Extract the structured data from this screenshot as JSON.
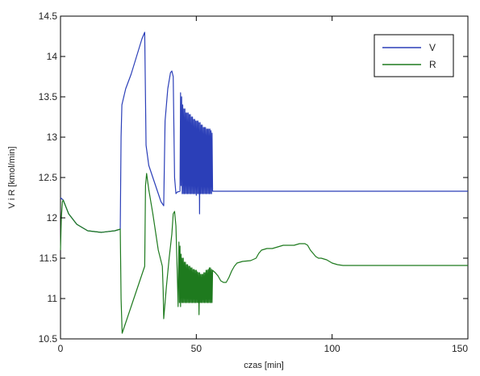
{
  "chart_data": {
    "type": "line",
    "xlabel": "czas [min]",
    "ylabel": "V i R [kmol/min]",
    "xlim": [
      0,
      150
    ],
    "ylim": [
      10.5,
      14.5
    ],
    "xticks": [
      0,
      50,
      100,
      150
    ],
    "yticks": [
      10.5,
      11,
      11.5,
      12,
      12.5,
      13,
      13.5,
      14,
      14.5
    ],
    "xtick_labels": [
      "0",
      "50",
      "100",
      "150"
    ],
    "ytick_labels": [
      "10.5",
      "11",
      "11.5",
      "12",
      "12.5",
      "13",
      "13.5",
      "14",
      "14.5"
    ],
    "grid": false,
    "legend_position": "top-right",
    "series": [
      {
        "name": "V",
        "color": "#2b3fb8",
        "points": [
          [
            0,
            12.25
          ],
          [
            1,
            12.22
          ],
          [
            3,
            12.05
          ],
          [
            6,
            11.92
          ],
          [
            10,
            11.84
          ],
          [
            15,
            11.82
          ],
          [
            20,
            11.84
          ],
          [
            22,
            11.86
          ],
          [
            22.3,
            13.0
          ],
          [
            22.6,
            13.4
          ],
          [
            24,
            13.6
          ],
          [
            26,
            13.78
          ],
          [
            28,
            14.0
          ],
          [
            30,
            14.22
          ],
          [
            31,
            14.3
          ],
          [
            31.5,
            12.9
          ],
          [
            32.5,
            12.65
          ],
          [
            35,
            12.4
          ],
          [
            37,
            12.2
          ],
          [
            38,
            12.15
          ],
          [
            38.5,
            13.2
          ],
          [
            39.5,
            13.6
          ],
          [
            40.5,
            13.8
          ],
          [
            41,
            13.82
          ],
          [
            41.5,
            13.75
          ],
          [
            42,
            12.5
          ],
          [
            42.5,
            12.3
          ],
          [
            43,
            12.32
          ],
          [
            44,
            12.33
          ],
          [
            44.2,
            13.55
          ],
          [
            44.4,
            12.4
          ],
          [
            44.6,
            13.5
          ],
          [
            44.8,
            12.3
          ],
          [
            45,
            13.4
          ],
          [
            45.2,
            12.3
          ],
          [
            45.4,
            13.35
          ],
          [
            45.6,
            12.3
          ],
          [
            45.8,
            13.35
          ],
          [
            46,
            12.3
          ],
          [
            46.2,
            13.3
          ],
          [
            46.4,
            12.3
          ],
          [
            46.6,
            13.3
          ],
          [
            46.8,
            12.3
          ],
          [
            47,
            13.3
          ],
          [
            47.2,
            12.3
          ],
          [
            47.4,
            13.28
          ],
          [
            47.6,
            12.3
          ],
          [
            47.8,
            13.28
          ],
          [
            48,
            12.3
          ],
          [
            48.2,
            13.25
          ],
          [
            48.4,
            12.3
          ],
          [
            48.6,
            13.25
          ],
          [
            48.8,
            12.3
          ],
          [
            49,
            13.22
          ],
          [
            49.2,
            12.3
          ],
          [
            49.4,
            13.22
          ],
          [
            49.6,
            12.3
          ],
          [
            49.8,
            13.2
          ],
          [
            50,
            12.28
          ],
          [
            50.2,
            13.2
          ],
          [
            50.4,
            12.3
          ],
          [
            50.6,
            13.2
          ],
          [
            50.8,
            12.3
          ],
          [
            51,
            13.18
          ],
          [
            51.2,
            12.05
          ],
          [
            51.4,
            13.18
          ],
          [
            51.6,
            12.3
          ],
          [
            51.8,
            13.15
          ],
          [
            52,
            12.3
          ],
          [
            52.2,
            13.15
          ],
          [
            52.4,
            12.3
          ],
          [
            52.6,
            13.12
          ],
          [
            52.8,
            12.3
          ],
          [
            53,
            13.12
          ],
          [
            53.2,
            12.3
          ],
          [
            53.4,
            13.12
          ],
          [
            53.6,
            12.3
          ],
          [
            53.8,
            13.1
          ],
          [
            54,
            12.3
          ],
          [
            54.2,
            13.1
          ],
          [
            54.4,
            12.3
          ],
          [
            54.6,
            13.1
          ],
          [
            54.8,
            12.3
          ],
          [
            55,
            13.1
          ],
          [
            55.2,
            12.3
          ],
          [
            55.4,
            13.08
          ],
          [
            55.6,
            12.3
          ],
          [
            55.8,
            13.05
          ],
          [
            56,
            12.33
          ],
          [
            57,
            12.33
          ],
          [
            80,
            12.33
          ],
          [
            100,
            12.33
          ],
          [
            150,
            12.33
          ]
        ]
      },
      {
        "name": "R",
        "color": "#1e7a1e",
        "points": [
          [
            0,
            11.6
          ],
          [
            0.3,
            12.0
          ],
          [
            0.7,
            12.2
          ],
          [
            1,
            12.22
          ],
          [
            3,
            12.05
          ],
          [
            6,
            11.92
          ],
          [
            10,
            11.84
          ],
          [
            15,
            11.82
          ],
          [
            20,
            11.84
          ],
          [
            22,
            11.86
          ],
          [
            22.3,
            11.0
          ],
          [
            22.7,
            10.57
          ],
          [
            24,
            10.7
          ],
          [
            26,
            10.9
          ],
          [
            28,
            11.1
          ],
          [
            30,
            11.3
          ],
          [
            31,
            11.4
          ],
          [
            31.3,
            12.4
          ],
          [
            31.7,
            12.55
          ],
          [
            32.5,
            12.35
          ],
          [
            34,
            12.05
          ],
          [
            36,
            11.6
          ],
          [
            37.5,
            11.4
          ],
          [
            37.8,
            11.1
          ],
          [
            38,
            10.75
          ],
          [
            39,
            11.15
          ],
          [
            40,
            11.5
          ],
          [
            41,
            11.8
          ],
          [
            41.5,
            12.05
          ],
          [
            42,
            12.08
          ],
          [
            42.5,
            11.9
          ],
          [
            43,
            11.3
          ],
          [
            43.3,
            10.9
          ],
          [
            43.6,
            11.7
          ],
          [
            43.8,
            10.95
          ],
          [
            44,
            11.65
          ],
          [
            44.2,
            10.9
          ],
          [
            44.4,
            11.55
          ],
          [
            44.6,
            10.95
          ],
          [
            44.8,
            11.5
          ],
          [
            45,
            10.95
          ],
          [
            45.2,
            11.5
          ],
          [
            45.4,
            10.95
          ],
          [
            45.6,
            11.45
          ],
          [
            45.8,
            10.95
          ],
          [
            46,
            11.45
          ],
          [
            46.2,
            10.95
          ],
          [
            46.4,
            11.42
          ],
          [
            46.6,
            10.95
          ],
          [
            46.8,
            11.42
          ],
          [
            47,
            10.95
          ],
          [
            47.2,
            11.4
          ],
          [
            47.4,
            10.95
          ],
          [
            47.6,
            11.4
          ],
          [
            47.8,
            10.95
          ],
          [
            48,
            11.38
          ],
          [
            48.2,
            10.95
          ],
          [
            48.4,
            11.38
          ],
          [
            48.6,
            10.95
          ],
          [
            48.8,
            11.36
          ],
          [
            49,
            10.95
          ],
          [
            49.2,
            11.36
          ],
          [
            49.4,
            10.95
          ],
          [
            49.6,
            11.35
          ],
          [
            49.8,
            10.95
          ],
          [
            50,
            11.35
          ],
          [
            50.2,
            10.95
          ],
          [
            50.4,
            11.33
          ],
          [
            50.6,
            10.95
          ],
          [
            50.8,
            11.32
          ],
          [
            51,
            10.8
          ],
          [
            51.2,
            11.32
          ],
          [
            51.4,
            10.95
          ],
          [
            51.6,
            11.3
          ],
          [
            51.8,
            10.95
          ],
          [
            52,
            11.3
          ],
          [
            52.2,
            10.95
          ],
          [
            52.4,
            11.3
          ],
          [
            52.6,
            10.95
          ],
          [
            52.8,
            11.32
          ],
          [
            53,
            10.95
          ],
          [
            53.2,
            11.32
          ],
          [
            53.4,
            10.95
          ],
          [
            53.6,
            11.35
          ],
          [
            53.8,
            10.95
          ],
          [
            54,
            11.35
          ],
          [
            54.2,
            10.95
          ],
          [
            54.4,
            11.36
          ],
          [
            54.6,
            10.95
          ],
          [
            54.8,
            11.38
          ],
          [
            55,
            10.95
          ],
          [
            55.2,
            11.38
          ],
          [
            55.4,
            10.95
          ],
          [
            55.6,
            11.36
          ],
          [
            55.8,
            10.95
          ],
          [
            56,
            11.35
          ],
          [
            57,
            11.32
          ],
          [
            58,
            11.28
          ],
          [
            59,
            11.22
          ],
          [
            60,
            11.2
          ],
          [
            61,
            11.2
          ],
          [
            62,
            11.26
          ],
          [
            63,
            11.34
          ],
          [
            64,
            11.4
          ],
          [
            65,
            11.44
          ],
          [
            67,
            11.46
          ],
          [
            70,
            11.47
          ],
          [
            72,
            11.5
          ],
          [
            73,
            11.56
          ],
          [
            74,
            11.6
          ],
          [
            76,
            11.62
          ],
          [
            78,
            11.62
          ],
          [
            80,
            11.64
          ],
          [
            82,
            11.66
          ],
          [
            84,
            11.66
          ],
          [
            86,
            11.66
          ],
          [
            88,
            11.68
          ],
          [
            90,
            11.68
          ],
          [
            91,
            11.66
          ],
          [
            92,
            11.6
          ],
          [
            93,
            11.56
          ],
          [
            94,
            11.52
          ],
          [
            95,
            11.5
          ],
          [
            96,
            11.5
          ],
          [
            98,
            11.48
          ],
          [
            100,
            11.44
          ],
          [
            102,
            11.42
          ],
          [
            104,
            11.41
          ],
          [
            106,
            11.41
          ],
          [
            110,
            11.41
          ],
          [
            120,
            11.41
          ],
          [
            130,
            11.41
          ],
          [
            140,
            11.41
          ],
          [
            150,
            11.41
          ]
        ]
      }
    ]
  }
}
